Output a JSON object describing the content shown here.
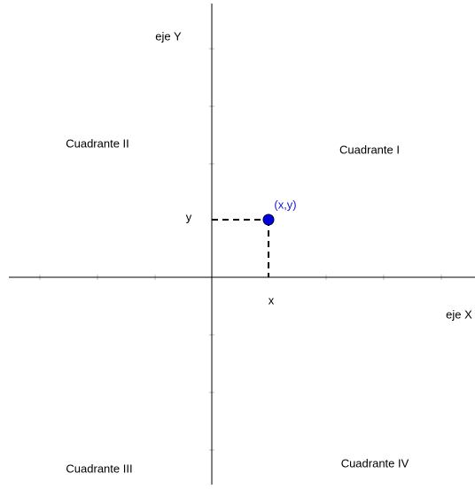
{
  "axes": {
    "x_label": "eje X",
    "y_label": "eje Y"
  },
  "quadrants": [
    "Cuadrante I",
    "Cuadrante II",
    "Cuadrante III",
    "Cuadrante IV"
  ],
  "point": {
    "label": "(x,y)",
    "x_label": "x",
    "y_label": "y"
  }
}
